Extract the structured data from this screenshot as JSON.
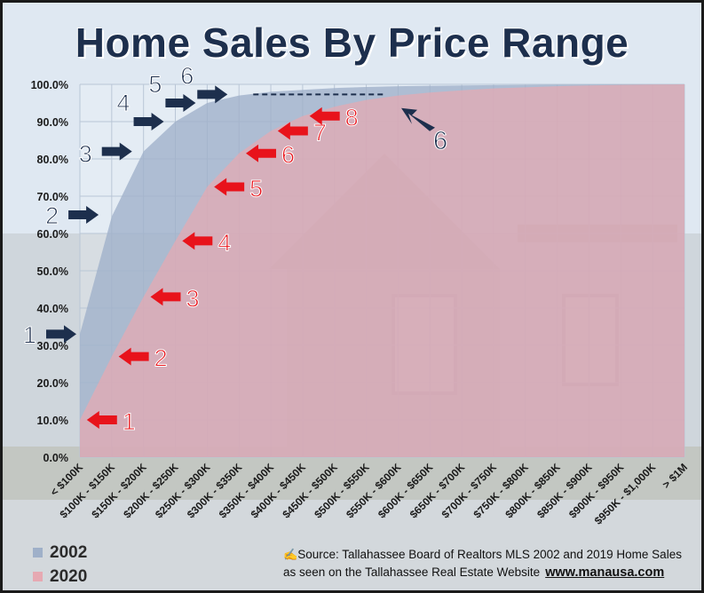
{
  "chart_data": {
    "type": "area",
    "title": "Home Sales By Price Range",
    "xlabel": "",
    "ylabel": "",
    "ylim": [
      0,
      100
    ],
    "grid": true,
    "yticks": [
      "0.0%",
      "10.0%",
      "20.0%",
      "30.0%",
      "40.0%",
      "50.0%",
      "60.0%",
      "70.0%",
      "80.0%",
      "90.0%",
      "100.0%"
    ],
    "categories": [
      "< $100K",
      "$100K - $150K",
      "$150K - $200K",
      "$200K - $250K",
      "$250K - $300K",
      "$300K - $350K",
      "$350K - $400K",
      "$400K - $450K",
      "$450K - $500K",
      "$500K - $550K",
      "$550K - $600K",
      "$600K - $650K",
      "$650K - $700K",
      "$700K - $750K",
      "$750K - $800K",
      "$800K - $850K",
      "$850K - $900K",
      "$900K - $950K",
      "$950K - $1,000K",
      "> $1M"
    ],
    "series": [
      {
        "name": "2002",
        "color": "#9fb0c9",
        "values": [
          33,
          64.5,
          82,
          90,
          95,
          97,
          98,
          98.5,
          99,
          99.3,
          99.5,
          99.6,
          99.7,
          99.8,
          99.85,
          99.9,
          99.93,
          99.96,
          99.98,
          100
        ]
      },
      {
        "name": "2020",
        "color": "#e6a9b2",
        "values": [
          10,
          27,
          43,
          58,
          72.5,
          81.5,
          87.5,
          91.5,
          94,
          95.8,
          97,
          97.8,
          98.4,
          98.9,
          99.2,
          99.5,
          99.7,
          99.85,
          99.93,
          100
        ]
      }
    ],
    "annotations": [
      {
        "series": "2002",
        "label": "1",
        "x_index": 0,
        "y": 33,
        "color": "#1d2f4d"
      },
      {
        "series": "2002",
        "label": "2",
        "x_index": 0.7,
        "y": 65,
        "color": "#1d2f4d"
      },
      {
        "series": "2002",
        "label": "3",
        "x_index": 1.75,
        "y": 82,
        "color": "#1d2f4d"
      },
      {
        "series": "2002",
        "label": "4",
        "x_index": 2.75,
        "y": 90,
        "color": "#1d2f4d"
      },
      {
        "series": "2002",
        "label": "5",
        "x_index": 3.75,
        "y": 95,
        "color": "#1d2f4d"
      },
      {
        "series": "2002",
        "label": "6",
        "x_index": 4.75,
        "y": 97.3,
        "color": "#1d2f4d"
      },
      {
        "series": "2002",
        "label": "6",
        "x_index": 10.1,
        "y": 96,
        "color": "#1d2f4d"
      },
      {
        "series": "2020",
        "label": "1",
        "x_index": 0.05,
        "y": 10,
        "color": "#e8131b"
      },
      {
        "series": "2020",
        "label": "2",
        "x_index": 1.05,
        "y": 27,
        "color": "#e8131b"
      },
      {
        "series": "2020",
        "label": "3",
        "x_index": 2.05,
        "y": 43,
        "color": "#e8131b"
      },
      {
        "series": "2020",
        "label": "4",
        "x_index": 3.05,
        "y": 58,
        "color": "#e8131b"
      },
      {
        "series": "2020",
        "label": "5",
        "x_index": 4.05,
        "y": 72.5,
        "color": "#e8131b"
      },
      {
        "series": "2020",
        "label": "6",
        "x_index": 5.05,
        "y": 81.5,
        "color": "#e8131b"
      },
      {
        "series": "2020",
        "label": "7",
        "x_index": 6.05,
        "y": 87.5,
        "color": "#e8131b"
      },
      {
        "series": "2020",
        "label": "8",
        "x_index": 7.05,
        "y": 91.5,
        "color": "#e8131b"
      }
    ]
  },
  "footer": {
    "source_line_1": "Source: Tallahassee Board of Realtors MLS 2002 and 2019 Home Sales",
    "source_line_2": "as seen on the Tallahassee Real Estate Website",
    "website": "www.manausa.com"
  }
}
